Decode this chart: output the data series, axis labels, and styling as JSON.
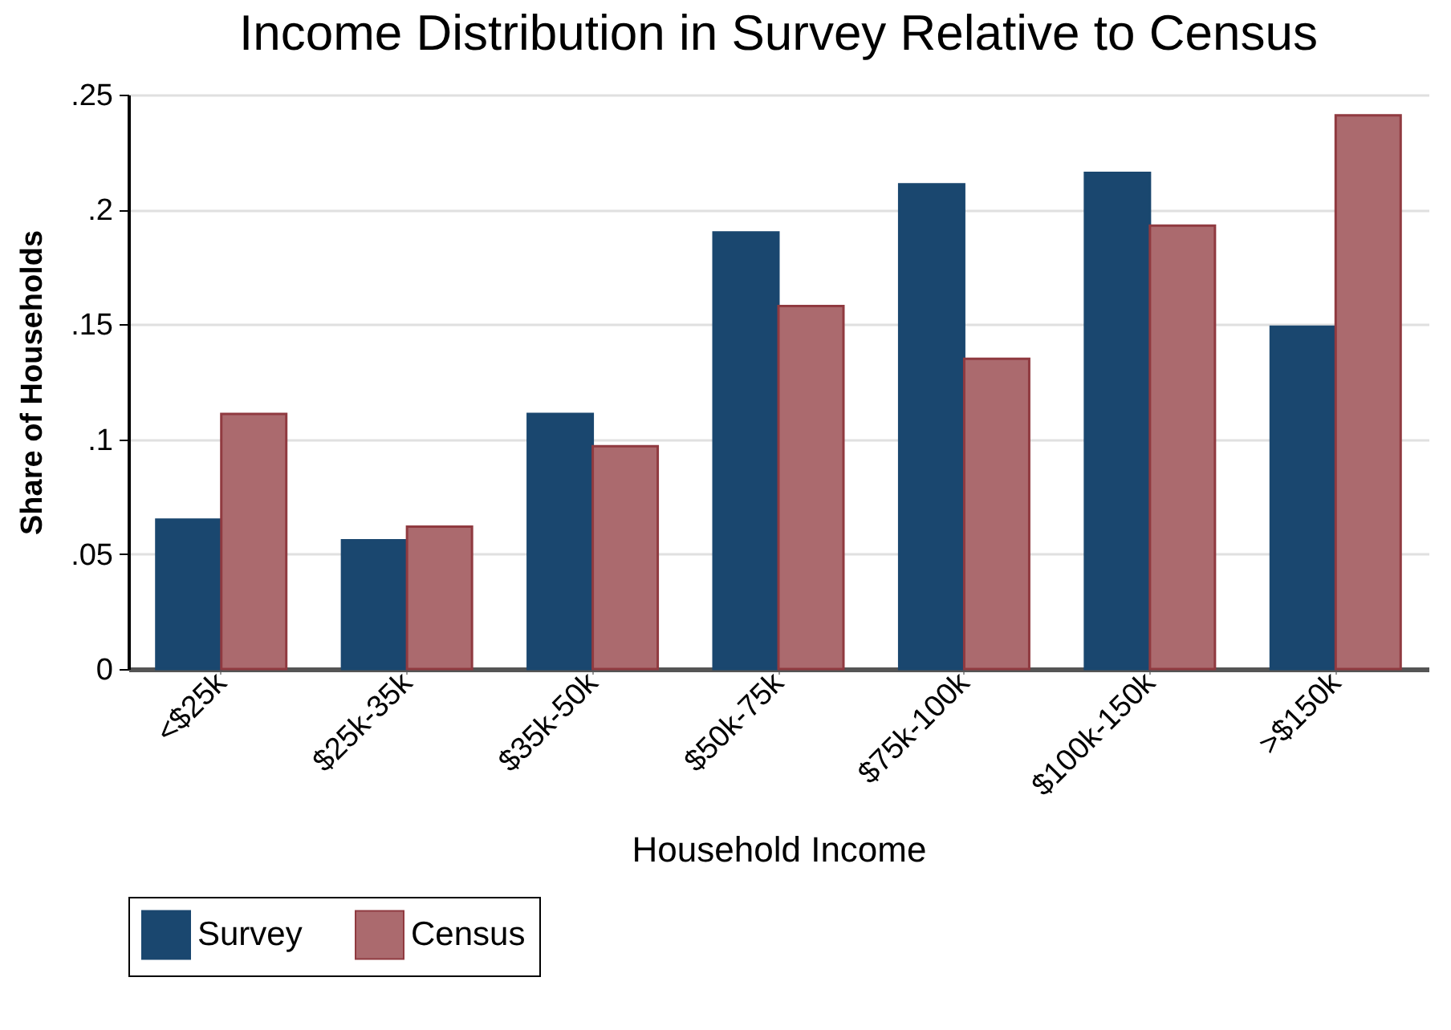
{
  "chart_data": {
    "type": "bar",
    "title": "Income Distribution in Survey Relative to Census",
    "xlabel": "Household Income",
    "ylabel": "Share of Households",
    "categories": [
      "<$25k",
      "$25k-35k",
      "$35k-50k",
      "$50k-75k",
      "$75k-100k",
      "$100k-150k",
      ">$150k"
    ],
    "series": [
      {
        "name": "Survey",
        "color": "#1a476f",
        "values": [
          0.065,
          0.056,
          0.111,
          0.19,
          0.211,
          0.216,
          0.149
        ]
      },
      {
        "name": "Census",
        "color": "#ab6a6e",
        "values": [
          0.111,
          0.062,
          0.097,
          0.158,
          0.135,
          0.193,
          0.241
        ]
      }
    ],
    "ylim": [
      0,
      0.25
    ],
    "yticks": [
      {
        "value": 0,
        "label": "0"
      },
      {
        "value": 0.05,
        "label": ".05"
      },
      {
        "value": 0.1,
        "label": ".1"
      },
      {
        "value": 0.15,
        "label": ".15"
      },
      {
        "value": 0.2,
        "label": ".2"
      },
      {
        "value": 0.25,
        "label": ".25"
      }
    ],
    "grid": "y",
    "legend": "bottom"
  }
}
